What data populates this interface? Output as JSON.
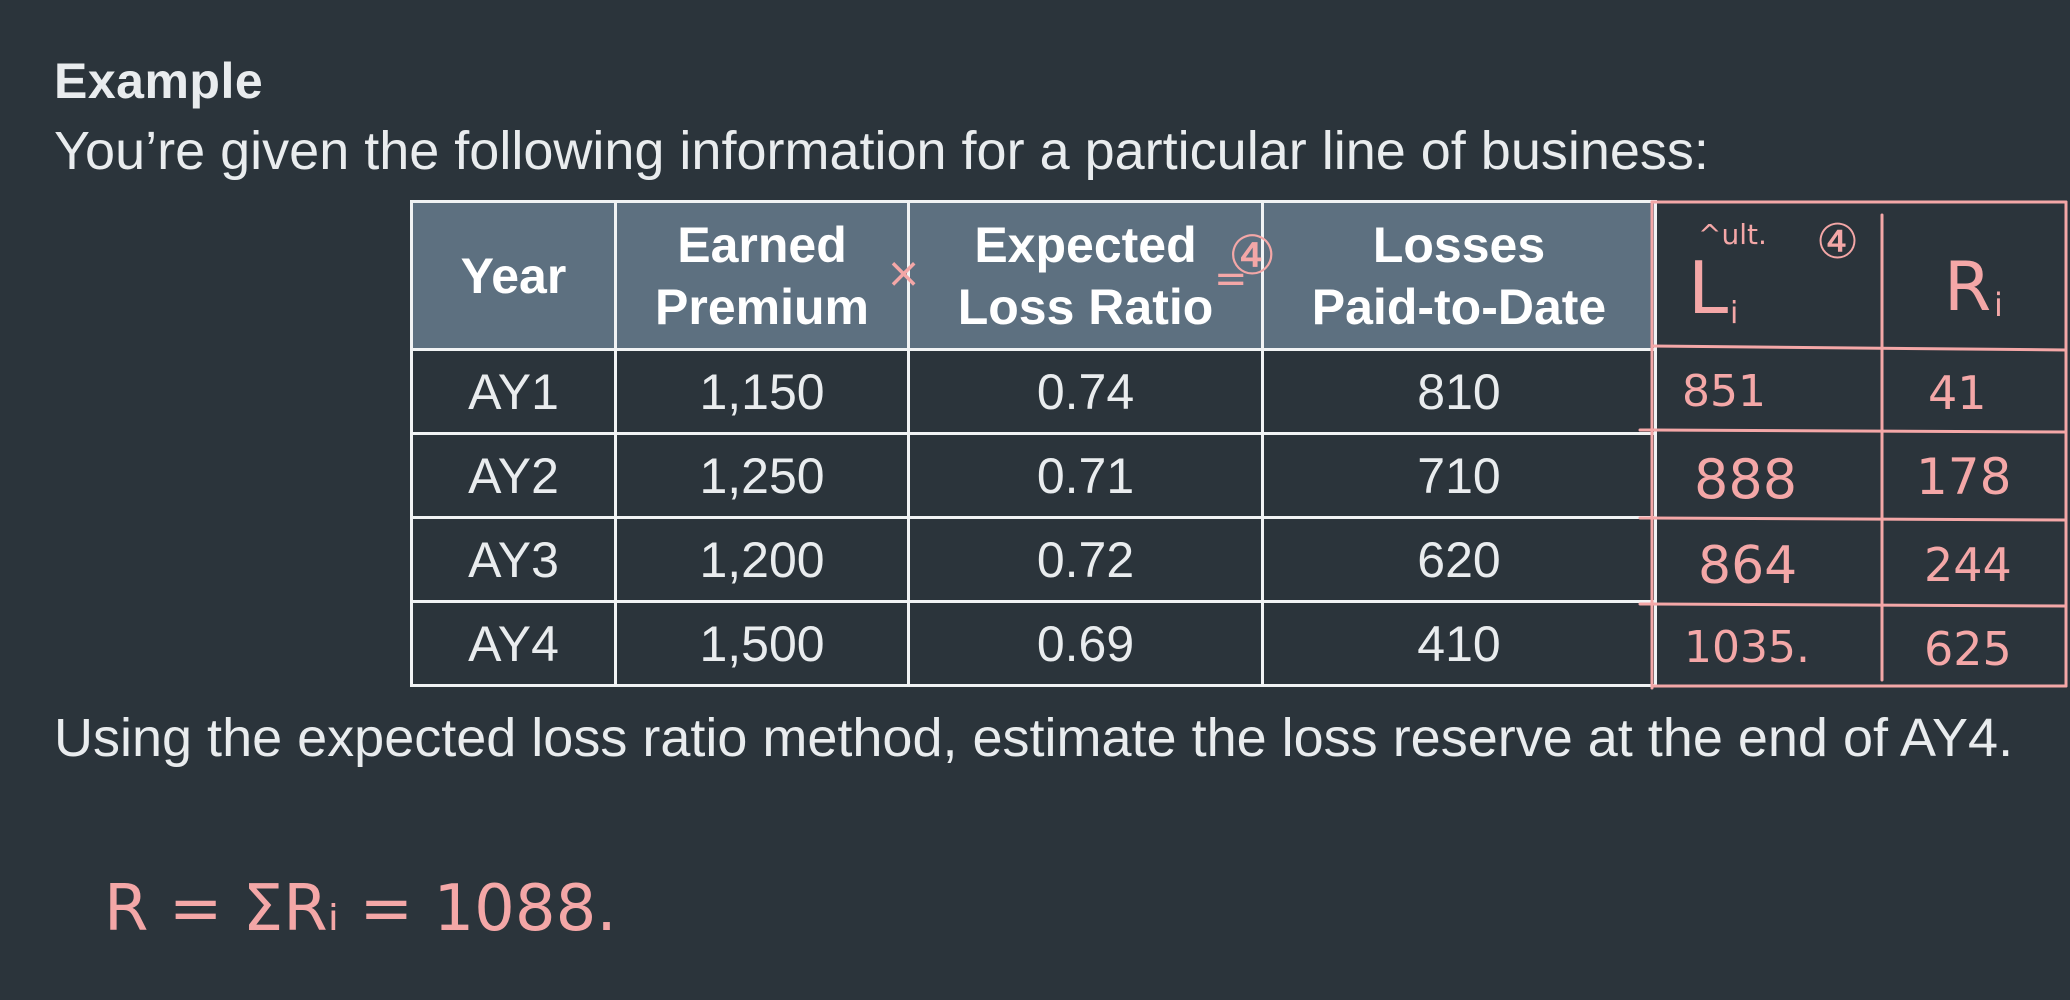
{
  "heading": "Example",
  "intro": "You’re given the following information for a particular line of business:",
  "table": {
    "headers": [
      [
        "Year"
      ],
      [
        "Earned",
        "Premium"
      ],
      [
        "Expected",
        "Loss Ratio"
      ],
      [
        "Losses",
        "Paid-to-Date"
      ]
    ],
    "rows": [
      [
        "AY1",
        "1,150",
        "0.74",
        "810"
      ],
      [
        "AY2",
        "1,250",
        "0.71",
        "710"
      ],
      [
        "AY3",
        "1,200",
        "0.72",
        "620"
      ],
      [
        "AY4",
        "1,500",
        "0.69",
        "410"
      ]
    ]
  },
  "question": "Using the expected loss ratio method, estimate the loss reserve at the end of AY4.",
  "annotations": {
    "ink_color": "#f4a7a7",
    "multiply_mark": "×",
    "equals_mark": "=",
    "circled_mark": "④",
    "ult_header": "L",
    "ult_superscript": "^ult.",
    "ult_subscript": "i",
    "ult_circled": "④",
    "reserve_header": "R",
    "reserve_subscript": "i",
    "ultimate_values": [
      "851",
      "888",
      "864",
      "1035."
    ],
    "reserve_values": [
      "41",
      "178",
      "244",
      "625"
    ],
    "total": "R = ΣRᵢ = 1088."
  }
}
